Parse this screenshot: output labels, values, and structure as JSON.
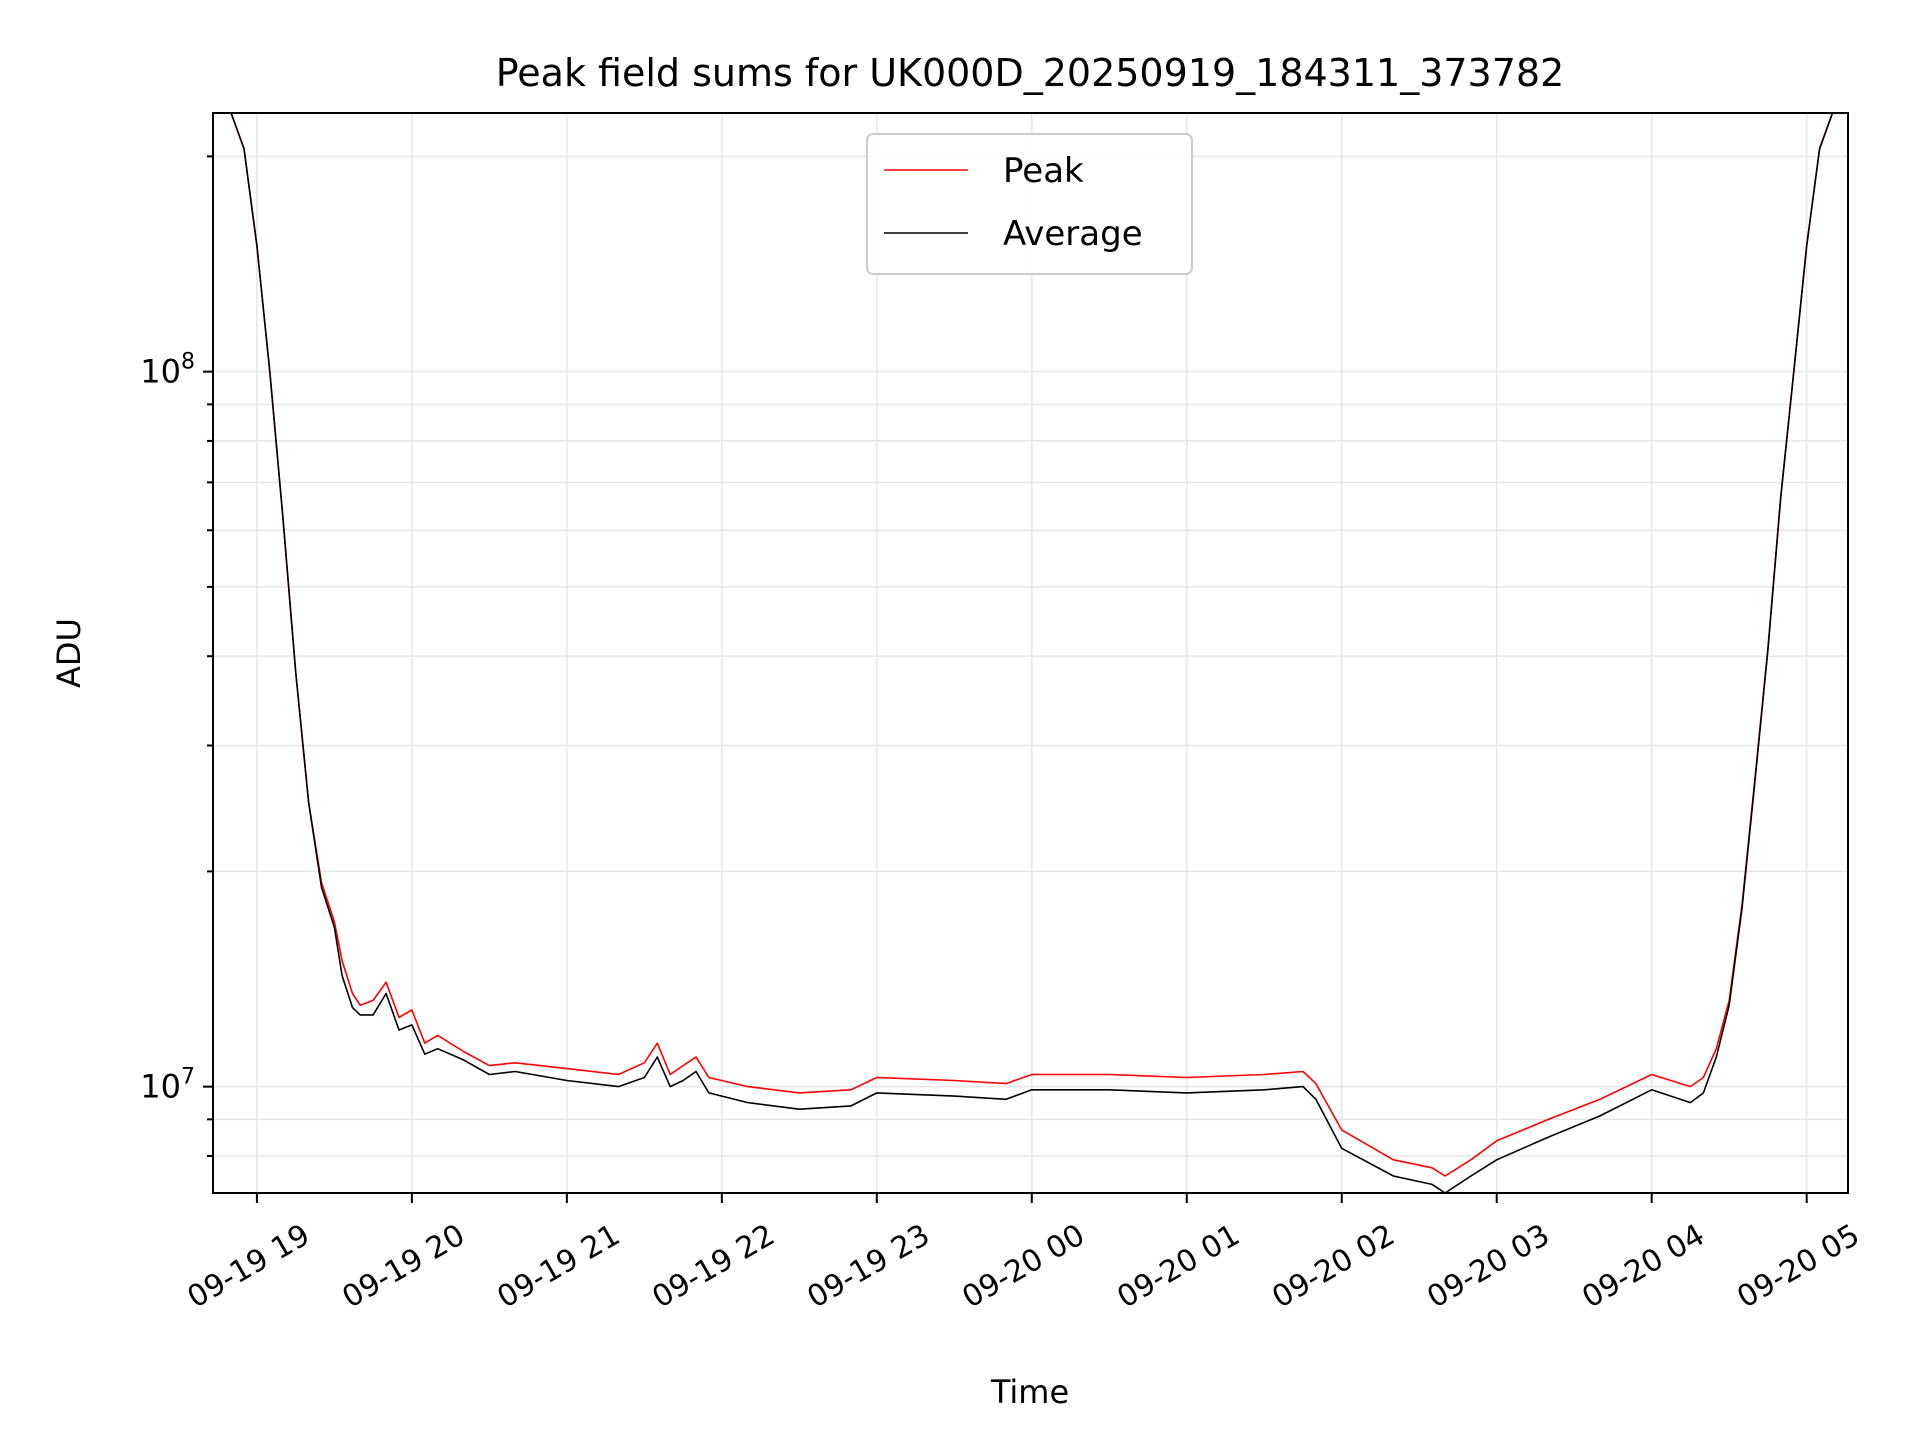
{
  "chart_data": {
    "type": "line",
    "title": "Peak field sums for UK000D_20250919_184311_373782",
    "xlabel": "Time",
    "ylabel": "ADU",
    "yscale": "log",
    "ylim": [
      7100000,
      230000000
    ],
    "xlim": [
      "2025-09-19 18:43",
      "2025-09-20 05:16"
    ],
    "x_ticks": [
      "09-19 19",
      "09-19 20",
      "09-19 21",
      "09-19 22",
      "09-19 23",
      "09-20 00",
      "09-20 01",
      "09-20 02",
      "09-20 03",
      "09-20 04",
      "09-20 05"
    ],
    "y_tick_labels": [
      {
        "value": 10000000,
        "base": "10",
        "exp": "7"
      },
      {
        "value": 100000000,
        "base": "10",
        "exp": "8"
      }
    ],
    "grid": true,
    "legend_position": "upper center",
    "x": [
      "2025-09-19 18:43",
      "2025-09-19 18:50",
      "2025-09-19 18:55",
      "2025-09-19 19:00",
      "2025-09-19 19:05",
      "2025-09-19 19:10",
      "2025-09-19 19:15",
      "2025-09-19 19:20",
      "2025-09-19 19:25",
      "2025-09-19 19:30",
      "2025-09-19 19:33",
      "2025-09-19 19:37",
      "2025-09-19 19:40",
      "2025-09-19 19:45",
      "2025-09-19 19:50",
      "2025-09-19 19:55",
      "2025-09-19 20:00",
      "2025-09-19 20:05",
      "2025-09-19 20:10",
      "2025-09-19 20:20",
      "2025-09-19 20:30",
      "2025-09-19 20:40",
      "2025-09-19 21:00",
      "2025-09-19 21:20",
      "2025-09-19 21:30",
      "2025-09-19 21:35",
      "2025-09-19 21:40",
      "2025-09-19 21:45",
      "2025-09-19 21:50",
      "2025-09-19 21:55",
      "2025-09-19 22:10",
      "2025-09-19 22:30",
      "2025-09-19 22:50",
      "2025-09-19 23:00",
      "2025-09-19 23:30",
      "2025-09-19 23:50",
      "2025-09-20 00:00",
      "2025-09-20 00:30",
      "2025-09-20 01:00",
      "2025-09-20 01:30",
      "2025-09-20 01:45",
      "2025-09-20 01:50",
      "2025-09-20 02:00",
      "2025-09-20 02:20",
      "2025-09-20 02:35",
      "2025-09-20 02:40",
      "2025-09-20 02:50",
      "2025-09-20 03:00",
      "2025-09-20 03:20",
      "2025-09-20 03:40",
      "2025-09-20 04:00",
      "2025-09-20 04:15",
      "2025-09-20 04:20",
      "2025-09-20 04:25",
      "2025-09-20 04:30",
      "2025-09-20 04:35",
      "2025-09-20 04:40",
      "2025-09-20 04:45",
      "2025-09-20 04:50",
      "2025-09-20 04:55",
      "2025-09-20 05:00",
      "2025-09-20 05:05",
      "2025-09-20 05:10"
    ],
    "series": [
      {
        "name": "Peak",
        "color": "#ff0000",
        "values": [
          230000000,
          230000000,
          205000000,
          150000000,
          100000000,
          63000000,
          38000000,
          25000000,
          19300000,
          17000000,
          15000000,
          13500000,
          13000000,
          13200000,
          14000000,
          12500000,
          12800000,
          11500000,
          11800000,
          11200000,
          10700000,
          10800000,
          10600000,
          10400000,
          10800000,
          11500000,
          10400000,
          10700000,
          11000000,
          10300000,
          10000000,
          9800000,
          9900000,
          10300000,
          10200000,
          10100000,
          10400000,
          10400000,
          10300000,
          10400000,
          10500000,
          10100000,
          8700000,
          7900000,
          7700000,
          7500000,
          7900000,
          8400000,
          9000000,
          9600000,
          10400000,
          10000000,
          10300000,
          11300000,
          13200000,
          18000000,
          27000000,
          41000000,
          67000000,
          100000000,
          150000000,
          205000000,
          230000000
        ]
      },
      {
        "name": "Average",
        "color": "#000000",
        "values": [
          230000000,
          230000000,
          205000000,
          150000000,
          100000000,
          63000000,
          38000000,
          25000000,
          19000000,
          16700000,
          14300000,
          12900000,
          12600000,
          12600000,
          13500000,
          12000000,
          12200000,
          11100000,
          11300000,
          10900000,
          10400000,
          10500000,
          10200000,
          10000000,
          10300000,
          11000000,
          10000000,
          10200000,
          10500000,
          9800000,
          9500000,
          9300000,
          9400000,
          9800000,
          9700000,
          9600000,
          9900000,
          9900000,
          9800000,
          9900000,
          10000000,
          9600000,
          8200000,
          7500000,
          7300000,
          7100000,
          7500000,
          7900000,
          8500000,
          9100000,
          9900000,
          9500000,
          9800000,
          11000000,
          13000000,
          17800000,
          26800000,
          40800000,
          66800000,
          100000000,
          150000000,
          205000000,
          230000000
        ]
      }
    ]
  }
}
